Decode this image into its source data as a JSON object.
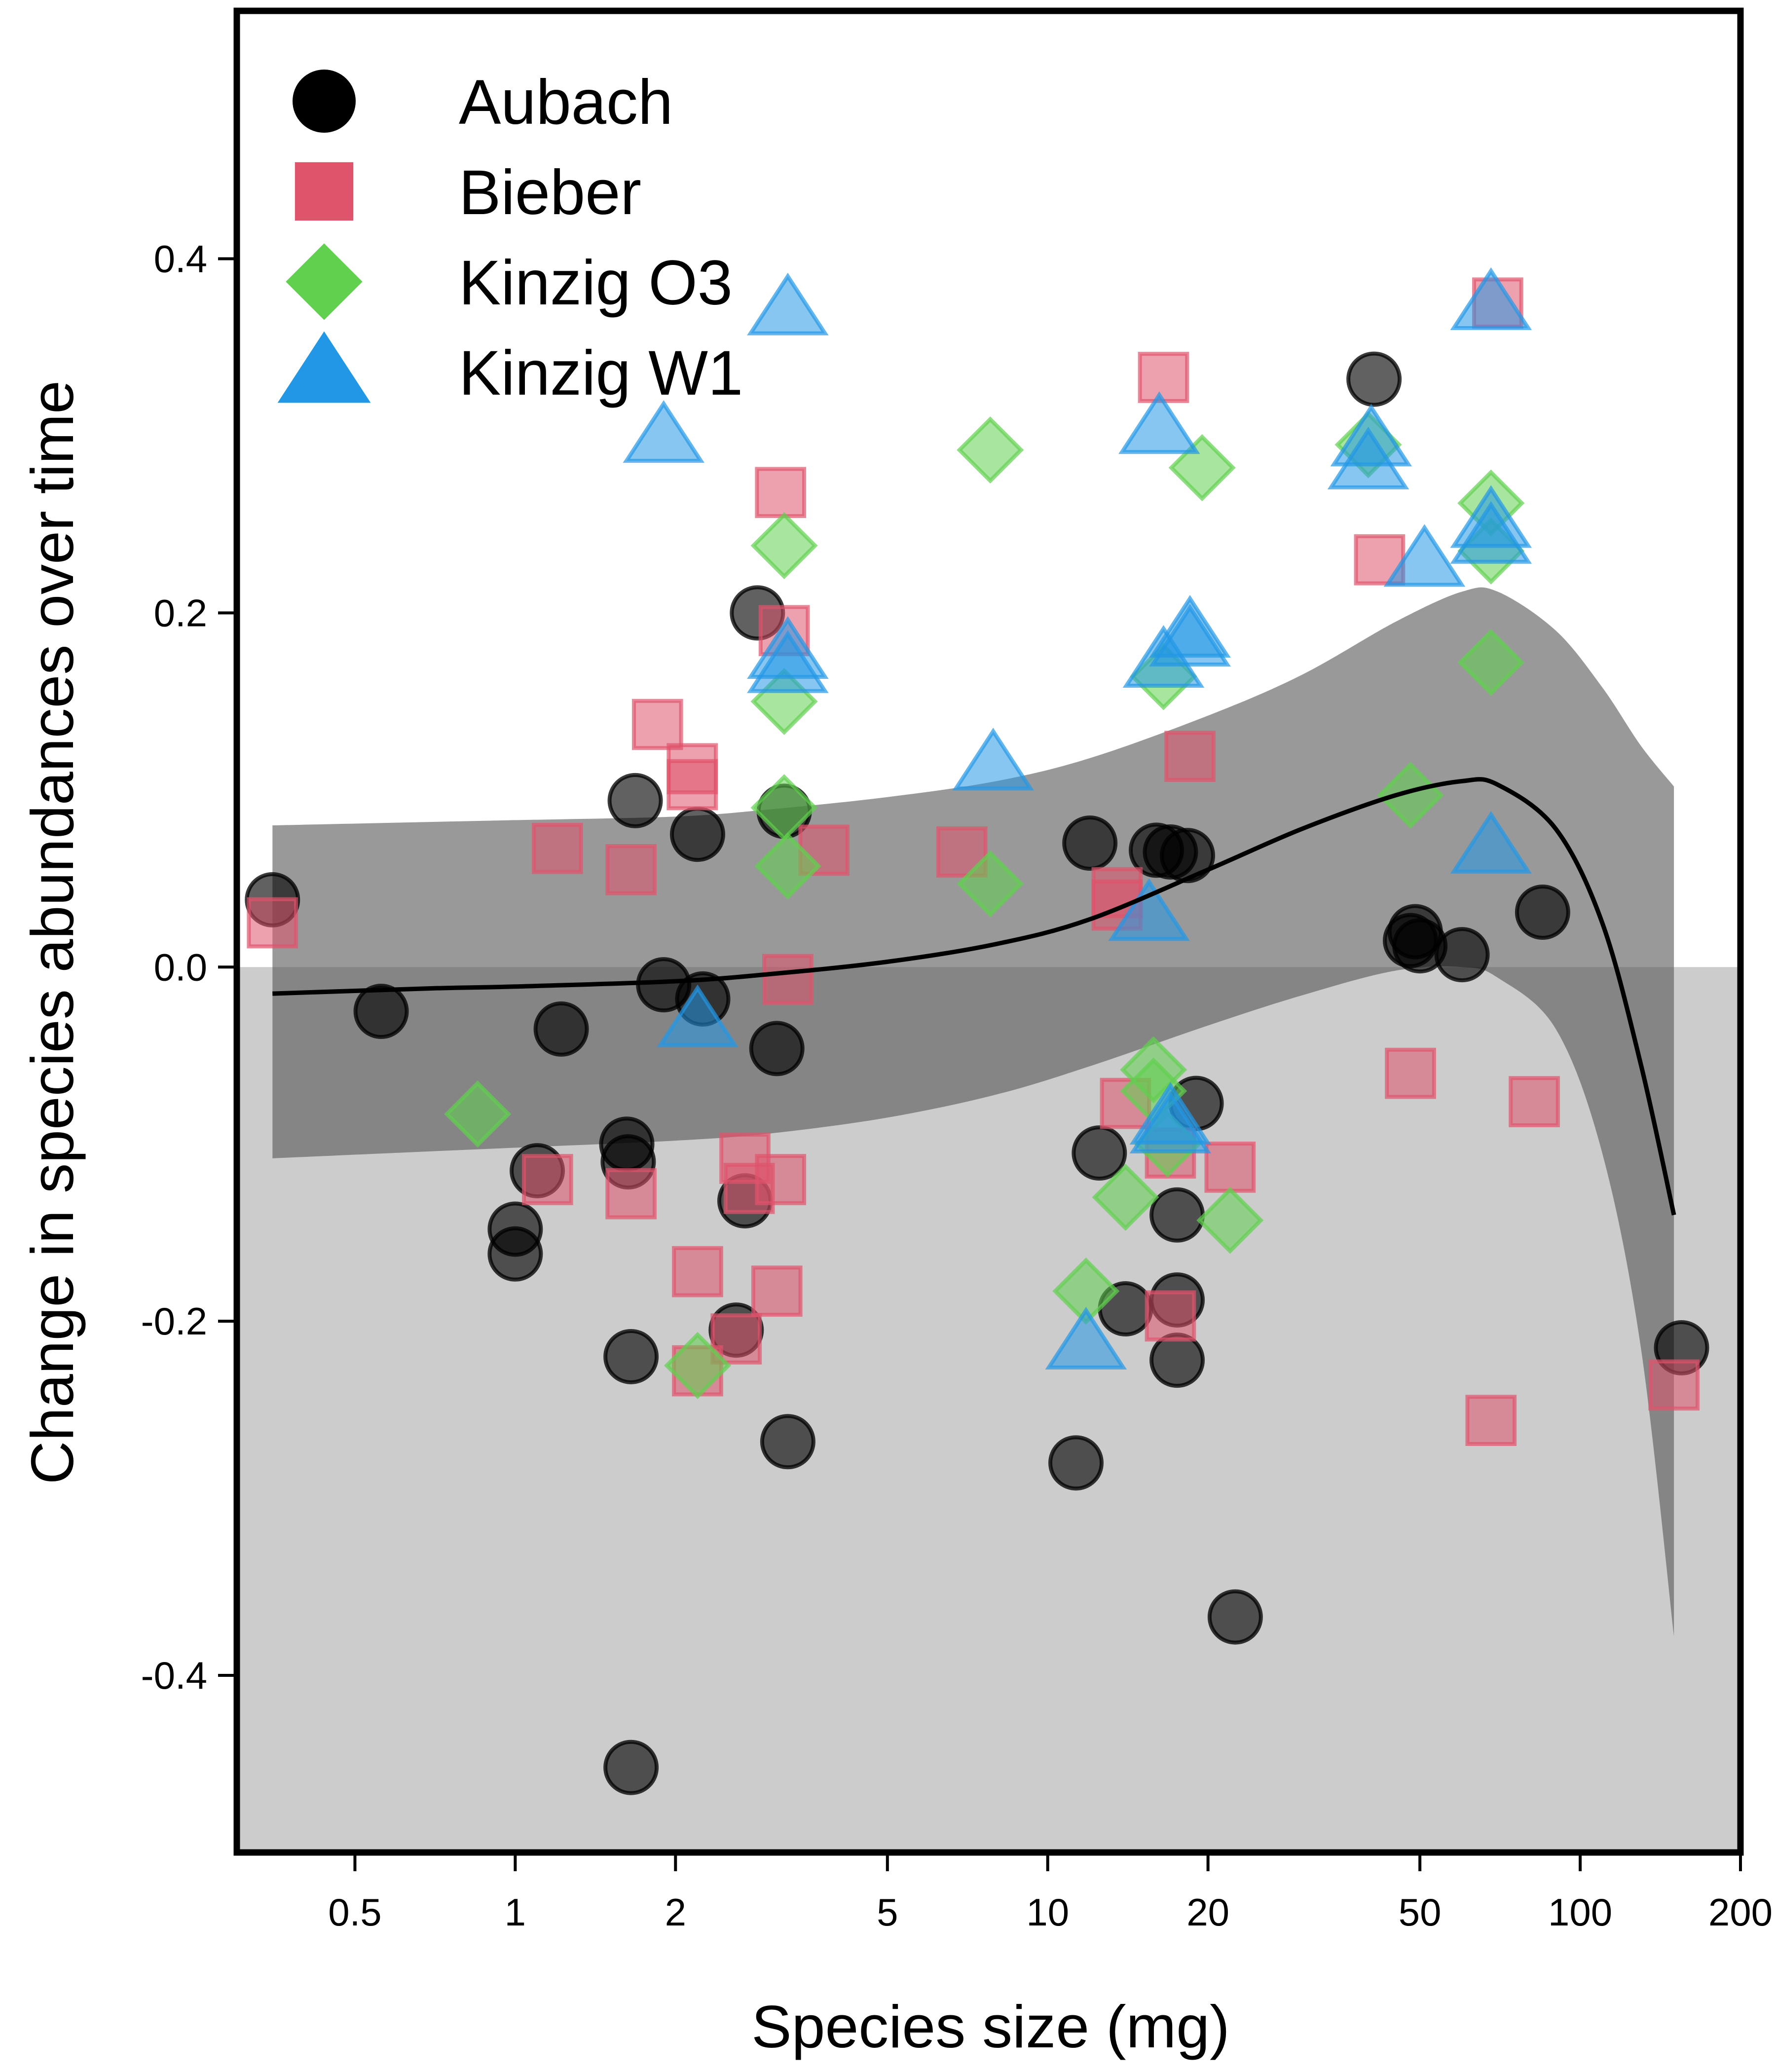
{
  "chart_data": {
    "type": "scatter",
    "title": "",
    "xlabel": "Species size (mg)",
    "ylabel": "Change in species abundances over time",
    "x_scale": "log",
    "xlim": [
      0.3,
      200
    ],
    "ylim": [
      -0.5,
      0.54
    ],
    "x_ticks": [
      0.5,
      1,
      2,
      5,
      10,
      20,
      50,
      100,
      200
    ],
    "x_tick_labels": [
      "0.5",
      "1",
      "2",
      "5",
      "10",
      "20",
      "50",
      "100",
      "200"
    ],
    "y_ticks": [
      -0.4,
      -0.2,
      0.0,
      0.2,
      0.4
    ],
    "y_tick_labels": [
      "-0.4",
      "-0.2",
      "0.0",
      "0.2",
      "0.4"
    ],
    "legend_position": "top-left",
    "background": {
      "negative_region_color": "#cccccc",
      "positive_region_color": "#ffffff"
    },
    "series": [
      {
        "name": "Aubach",
        "marker": "circle",
        "color": "#000000",
        "points": [
          [
            0.35,
            0.038
          ],
          [
            0.56,
            -0.025
          ],
          [
            1.0,
            -0.148
          ],
          [
            1.0,
            -0.162
          ],
          [
            1.1,
            -0.115
          ],
          [
            1.22,
            -0.035
          ],
          [
            1.62,
            -0.1
          ],
          [
            1.63,
            -0.11
          ],
          [
            1.65,
            -0.22
          ],
          [
            1.65,
            -0.452
          ],
          [
            1.68,
            0.094
          ],
          [
            1.9,
            -0.01
          ],
          [
            2.2,
            0.075
          ],
          [
            2.25,
            -0.018
          ],
          [
            2.6,
            -0.205
          ],
          [
            2.7,
            -0.132
          ],
          [
            2.85,
            0.2
          ],
          [
            3.1,
            -0.046
          ],
          [
            3.2,
            0.088
          ],
          [
            3.25,
            -0.268
          ],
          [
            11.3,
            -0.28
          ],
          [
            12.0,
            0.07
          ],
          [
            12.5,
            -0.105
          ],
          [
            14.0,
            -0.193
          ],
          [
            16.0,
            0.066
          ],
          [
            17.0,
            0.065
          ],
          [
            17.5,
            -0.14
          ],
          [
            17.5,
            -0.188
          ],
          [
            17.5,
            -0.222
          ],
          [
            18.3,
            0.063
          ],
          [
            19.0,
            -0.077
          ],
          [
            22.5,
            -0.367
          ],
          [
            41.0,
            0.332
          ],
          [
            48.0,
            0.015
          ],
          [
            49.0,
            0.02
          ],
          [
            50.0,
            0.012
          ],
          [
            60.0,
            0.007
          ],
          [
            85.0,
            0.031
          ],
          [
            155.0,
            -0.215
          ]
        ]
      },
      {
        "name": "Bieber",
        "marker": "square",
        "color": "#df536b",
        "points": [
          [
            0.35,
            0.025
          ],
          [
            1.15,
            -0.12
          ],
          [
            1.2,
            0.067
          ],
          [
            1.65,
            0.055
          ],
          [
            1.65,
            -0.128
          ],
          [
            1.85,
            0.137
          ],
          [
            2.15,
            0.112
          ],
          [
            2.15,
            0.103
          ],
          [
            2.2,
            -0.172
          ],
          [
            2.2,
            -0.228
          ],
          [
            2.6,
            -0.21
          ],
          [
            2.7,
            -0.108
          ],
          [
            2.75,
            -0.125
          ],
          [
            3.1,
            -0.183
          ],
          [
            3.15,
            -0.12
          ],
          [
            3.15,
            0.268
          ],
          [
            3.2,
            0.19
          ],
          [
            3.25,
            -0.007
          ],
          [
            3.8,
            0.066
          ],
          [
            6.9,
            0.065
          ],
          [
            13.5,
            0.042
          ],
          [
            13.5,
            0.035
          ],
          [
            14.0,
            -0.077
          ],
          [
            16.5,
            0.333
          ],
          [
            17.0,
            -0.105
          ],
          [
            17.0,
            -0.197
          ],
          [
            18.5,
            0.119
          ],
          [
            22.0,
            -0.113
          ],
          [
            42.0,
            0.23
          ],
          [
            48.0,
            -0.06
          ],
          [
            68.0,
            -0.256
          ],
          [
            70.0,
            0.375
          ],
          [
            82.0,
            -0.076
          ],
          [
            150.0,
            -0.236
          ]
        ]
      },
      {
        "name": "Kinzig O3",
        "marker": "diamond",
        "color": "#61d04f",
        "points": [
          [
            0.85,
            -0.083
          ],
          [
            2.2,
            -0.225
          ],
          [
            3.2,
            0.238
          ],
          [
            3.2,
            0.15
          ],
          [
            3.2,
            0.09
          ],
          [
            3.25,
            0.057
          ],
          [
            7.8,
            0.292
          ],
          [
            7.8,
            0.047
          ],
          [
            11.8,
            -0.183
          ],
          [
            14.0,
            -0.13
          ],
          [
            15.8,
            -0.058
          ],
          [
            15.8,
            -0.07
          ],
          [
            16.5,
            0.164
          ],
          [
            16.8,
            -0.1
          ],
          [
            19.5,
            0.282
          ],
          [
            22.0,
            -0.143
          ],
          [
            40.0,
            0.295
          ],
          [
            48.0,
            0.097
          ],
          [
            68.0,
            0.262
          ],
          [
            68.0,
            0.235
          ],
          [
            68.0,
            0.172
          ]
        ]
      },
      {
        "name": "Kinzig W1",
        "marker": "triangle",
        "color": "#2297e6",
        "points": [
          [
            1.9,
            0.3
          ],
          [
            2.2,
            -0.03
          ],
          [
            3.25,
            0.372
          ],
          [
            3.25,
            0.178
          ],
          [
            3.25,
            0.17
          ],
          [
            7.9,
            0.115
          ],
          [
            11.8,
            -0.212
          ],
          [
            15.5,
            0.03
          ],
          [
            16.2,
            0.305
          ],
          [
            16.5,
            0.173
          ],
          [
            17.0,
            -0.085
          ],
          [
            17.0,
            -0.09
          ],
          [
            18.5,
            0.19
          ],
          [
            18.5,
            0.185
          ],
          [
            40.0,
            0.285
          ],
          [
            40.5,
            0.298
          ],
          [
            51.0,
            0.23
          ],
          [
            68.0,
            0.068
          ],
          [
            68.0,
            0.252
          ],
          [
            68.0,
            0.243
          ],
          [
            68.0,
            0.375
          ]
        ]
      }
    ],
    "fit": {
      "line_color": "#000000",
      "band_color": "#555555",
      "x": [
        0.35,
        0.7,
        1.0,
        2.0,
        3.0,
        5.0,
        8.0,
        12.0,
        20.0,
        30.0,
        45.0,
        60.0,
        70.0,
        90.0,
        110.0,
        130.0,
        150.0
      ],
      "y": [
        -0.015,
        -0.012,
        -0.011,
        -0.008,
        -0.004,
        0.003,
        0.013,
        0.027,
        0.055,
        0.078,
        0.097,
        0.105,
        0.103,
        0.078,
        0.025,
        -0.055,
        -0.14
      ],
      "lower": [
        -0.108,
        -0.104,
        -0.102,
        -0.098,
        -0.094,
        -0.085,
        -0.072,
        -0.056,
        -0.033,
        -0.016,
        -0.002,
        0.0,
        -0.006,
        -0.035,
        -0.105,
        -0.215,
        -0.378
      ],
      "upper": [
        0.08,
        0.082,
        0.083,
        0.085,
        0.089,
        0.096,
        0.105,
        0.118,
        0.142,
        0.165,
        0.195,
        0.212,
        0.212,
        0.19,
        0.158,
        0.125,
        0.102
      ]
    }
  }
}
